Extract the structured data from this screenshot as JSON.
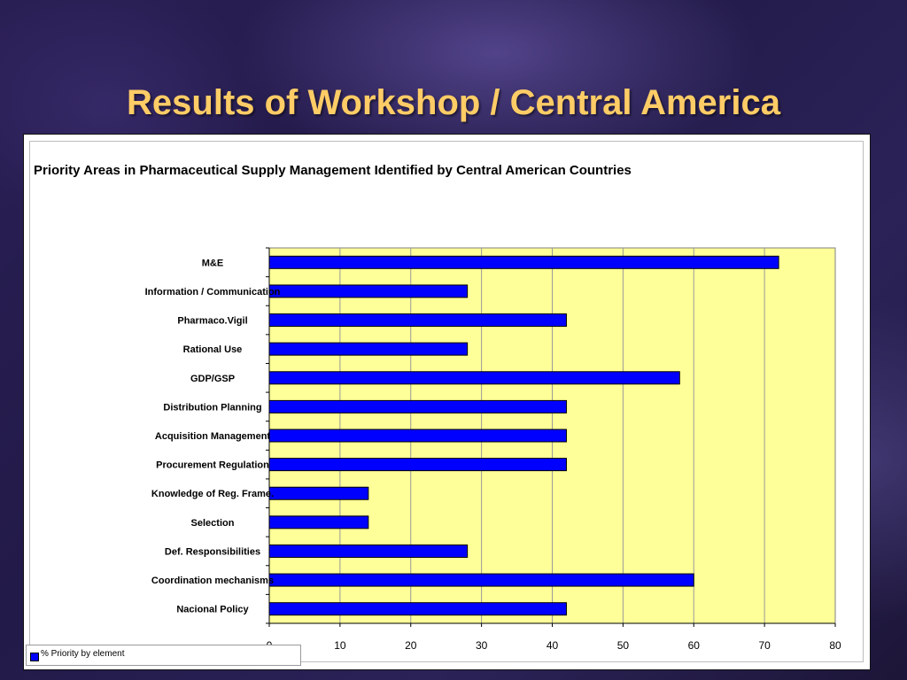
{
  "slide": {
    "title": "Results of Workshop / Central America"
  },
  "colors": {
    "title": "#ffcc66",
    "plot_background": "#ffff99",
    "bar": "#0000ff",
    "bar_outline": "#000000"
  },
  "chart_data": {
    "type": "bar",
    "orientation": "horizontal",
    "title": "Priority Areas in Pharmaceutical Supply Management Identified by Central American Countries",
    "xlabel": "",
    "ylabel": "",
    "xlim": [
      0,
      80
    ],
    "xticks": [
      0,
      10,
      20,
      30,
      40,
      50,
      60,
      70,
      80
    ],
    "grid": "vertical",
    "legend_position": "bottom-left",
    "categories": [
      "M&E",
      "Information / Communication",
      "Pharmaco.Vigil",
      "Rational Use",
      "GDP/GSP",
      "Distribution Planning",
      "Acquisition Management",
      "Procurement Regulation",
      "Knowledge of Reg. Frame.",
      "Selection",
      "Def. Responsibilities",
      "Coordination mechanisms",
      "Nacional Policy"
    ],
    "series": [
      {
        "name": "% Priority by element",
        "values": [
          72,
          28,
          42,
          28,
          58,
          42,
          42,
          42,
          14,
          14,
          28,
          60,
          42
        ]
      }
    ]
  }
}
